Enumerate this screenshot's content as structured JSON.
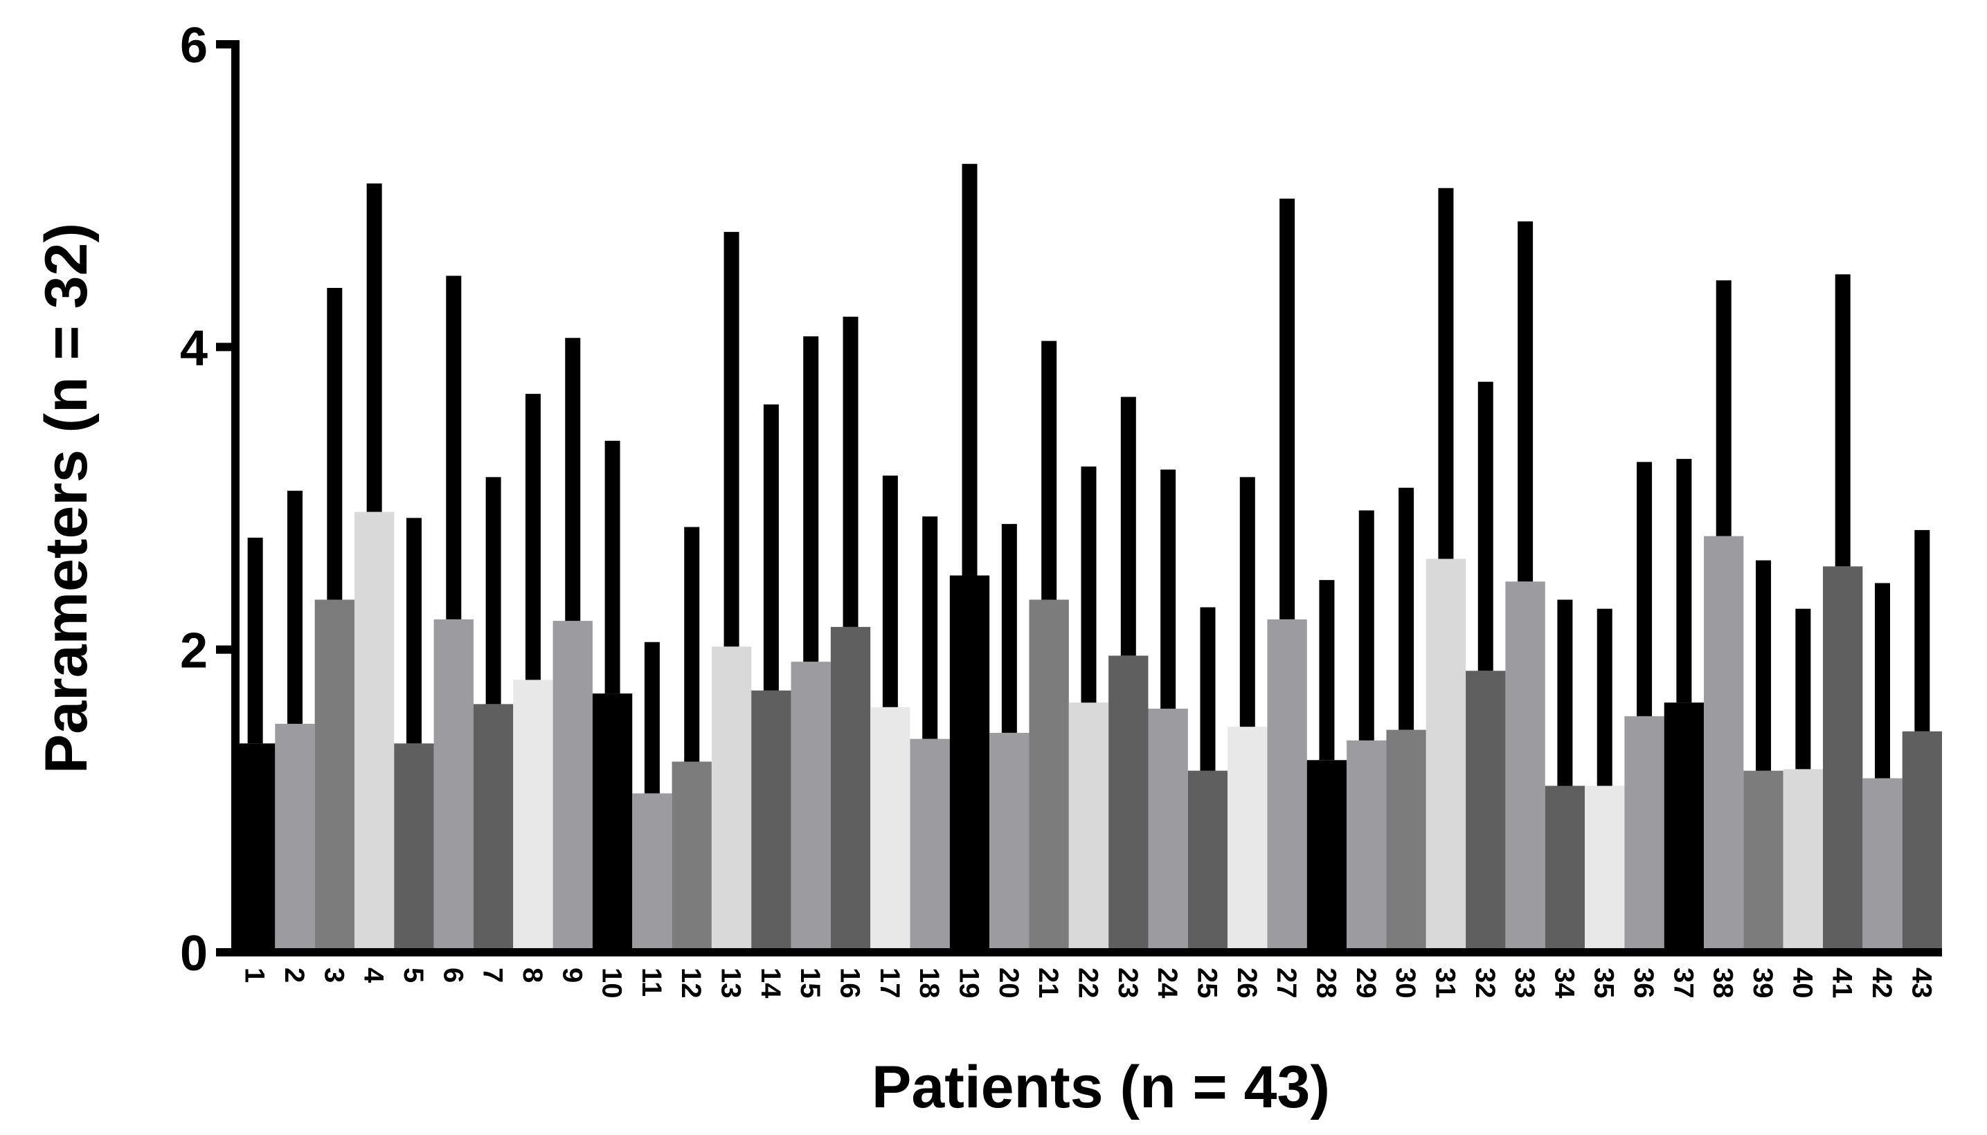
{
  "chart_data": {
    "type": "bar",
    "x_label": "Patients (n = 43)",
    "y_label": "Parameters (n = 32)",
    "categories": [
      "1",
      "2",
      "3",
      "4",
      "5",
      "6",
      "7",
      "8",
      "9",
      "10",
      "11",
      "12",
      "13",
      "14",
      "15",
      "16",
      "17",
      "18",
      "19",
      "20",
      "21",
      "22",
      "23",
      "24",
      "25",
      "26",
      "27",
      "28",
      "29",
      "30",
      "31",
      "32",
      "33",
      "34",
      "35",
      "36",
      "37",
      "38",
      "39",
      "40",
      "41",
      "42",
      "43"
    ],
    "values": [
      1.38,
      1.51,
      2.33,
      2.91,
      1.38,
      2.2,
      1.64,
      1.8,
      2.19,
      1.71,
      1.05,
      1.26,
      2.02,
      1.73,
      1.92,
      2.15,
      1.62,
      1.41,
      2.49,
      1.45,
      2.33,
      1.65,
      1.96,
      1.61,
      1.2,
      1.49,
      2.2,
      1.27,
      1.4,
      1.47,
      2.6,
      1.86,
      2.45,
      1.1,
      1.1,
      1.56,
      1.65,
      2.75,
      1.2,
      1.21,
      2.55,
      1.15,
      1.46
    ],
    "errors": [
      1.36,
      1.54,
      2.06,
      2.17,
      1.49,
      2.27,
      1.5,
      1.89,
      1.87,
      1.67,
      1.0,
      1.55,
      2.74,
      1.89,
      2.15,
      2.05,
      1.53,
      1.47,
      2.72,
      1.38,
      1.71,
      1.56,
      1.71,
      1.58,
      1.08,
      1.65,
      2.78,
      1.19,
      1.52,
      1.6,
      2.45,
      1.91,
      2.38,
      1.23,
      1.17,
      1.68,
      1.61,
      1.69,
      1.39,
      1.06,
      1.93,
      1.29,
      1.33
    ],
    "colors": [
      "#000000",
      "#9b9ba0",
      "#7c7c7c",
      "#d9d9d9",
      "#5f5f5f",
      "#9b9ba0",
      "#5f5f5f",
      "#e8e8e8",
      "#9b9ba0",
      "#000000",
      "#9b9ba0",
      "#7c7c7c",
      "#d9d9d9",
      "#5f5f5f",
      "#9b9ba0",
      "#5f5f5f",
      "#e8e8e8",
      "#9b9ba0",
      "#000000",
      "#9b9ba0",
      "#7c7c7c",
      "#d9d9d9",
      "#5f5f5f",
      "#9b9ba0",
      "#5f5f5f",
      "#e8e8e8",
      "#9b9ba0",
      "#000000",
      "#9b9ba0",
      "#7c7c7c",
      "#d9d9d9",
      "#5f5f5f",
      "#9b9ba0",
      "#5f5f5f",
      "#e8e8e8",
      "#9b9ba0",
      "#000000",
      "#9b9ba0",
      "#7c7c7c",
      "#d9d9d9",
      "#5f5f5f",
      "#9b9ba0",
      "#5f5f5f"
    ],
    "error_color": "#000000",
    "ylim": [
      0,
      6
    ],
    "yticks": [
      0,
      2,
      4,
      6
    ],
    "grid": false
  }
}
